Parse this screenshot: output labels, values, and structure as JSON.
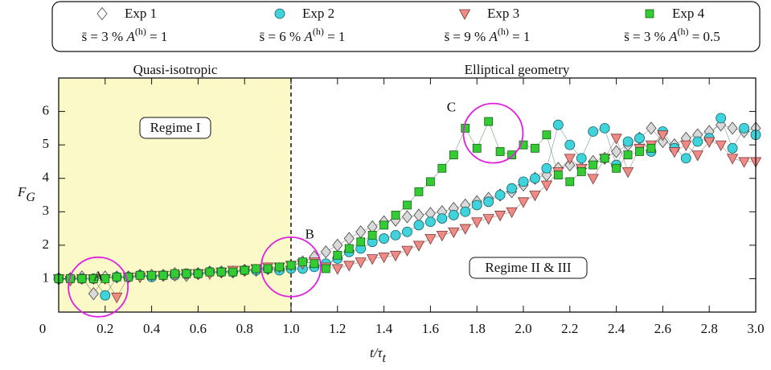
{
  "chart_data": {
    "type": "scatter",
    "x_label": {
      "main": "t/τ",
      "sub": "t"
    },
    "y_label": {
      "main": "F",
      "sub": "G"
    },
    "xlim": [
      0,
      3
    ],
    "ylim": [
      0,
      7
    ],
    "xticks": [
      0,
      0.2,
      0.4,
      0.6,
      0.8,
      {
        "value": 1,
        "label": "1.0"
      },
      1.2,
      1.4,
      1.6,
      1.8,
      {
        "value": 2,
        "label": "2.0"
      },
      2.2,
      2.4,
      2.6,
      2.8,
      {
        "value": 3,
        "label": "3.0"
      }
    ],
    "yticks": [
      1,
      2,
      3,
      4,
      5,
      6
    ],
    "shaded_region": [
      0,
      1
    ],
    "shade_color": "#fcf9c8",
    "annotations": {
      "left_region": "Quasi-isotropic",
      "right_region": "Elliptical geometry",
      "regime_1": "Regime I",
      "regime_2": "Regime II & III",
      "A": "A",
      "B": "B",
      "C": "C"
    },
    "x": [
      0,
      0.05,
      0.1,
      0.15,
      0.2,
      0.25,
      0.3,
      0.35,
      0.4,
      0.45,
      0.5,
      0.55,
      0.6,
      0.65,
      0.7,
      0.75,
      0.8,
      0.85,
      0.9,
      0.95,
      1,
      1.05,
      1.1,
      1.15,
      1.2,
      1.25,
      1.3,
      1.35,
      1.4,
      1.45,
      1.5,
      1.55,
      1.6,
      1.65,
      1.7,
      1.75,
      1.8,
      1.85,
      1.9,
      1.95,
      2,
      2.05,
      2.1,
      2.15,
      2.2,
      2.25,
      2.3,
      2.35,
      2.4,
      2.45,
      2.5,
      2.55,
      2.6,
      2.65,
      2.7,
      2.75,
      2.8,
      2.85,
      2.9,
      2.95,
      3
    ],
    "series": [
      {
        "name": "Exp 1",
        "params": [
          "s̄ = 3 % ",
          "A",
          "(h)",
          " = 1"
        ],
        "marker": "diamond",
        "color": "#d9d9d9",
        "stroke": "#444444",
        "legend_fill": "#ffffff",
        "values": [
          1,
          1,
          1.05,
          0.55,
          1.05,
          1.05,
          1.05,
          1.1,
          1.1,
          1.1,
          1.15,
          1.1,
          1.15,
          1.2,
          1.2,
          1.2,
          1.25,
          1.25,
          1.3,
          1.3,
          1.35,
          1.5,
          1.65,
          1.8,
          2.0,
          2.2,
          2.4,
          2.55,
          2.7,
          2.75,
          2.85,
          2.9,
          2.95,
          3.0,
          3.1,
          3.2,
          3.3,
          3.4,
          3.5,
          3.6,
          3.8,
          4.0,
          4.1,
          4.3,
          4.4,
          4.3,
          4.5,
          4.6,
          4.8,
          5.0,
          5.2,
          5.5,
          5.1,
          5.0,
          5.2,
          5.3,
          5.4,
          5.6,
          5.5,
          5.4,
          5.5
        ]
      },
      {
        "name": "Exp 2",
        "params": [
          "s̄ = 6 % ",
          "A",
          "(h)",
          " = 1"
        ],
        "marker": "circle",
        "color": "#3fd4dc",
        "stroke": "#1a5c60",
        "legend_fill": "#3fd4dc",
        "values": [
          1,
          1,
          1,
          1,
          0.5,
          1.05,
          1.05,
          1.1,
          1.05,
          1.1,
          1.1,
          1.15,
          1.15,
          1.2,
          1.2,
          1.2,
          1.25,
          1.25,
          1.3,
          1.25,
          1.3,
          1.3,
          1.35,
          1.45,
          1.6,
          1.8,
          1.9,
          2.1,
          2.2,
          2.3,
          2.4,
          2.6,
          2.7,
          2.8,
          2.9,
          3.0,
          3.2,
          3.3,
          3.5,
          3.7,
          3.9,
          4.0,
          4.3,
          5.6,
          5.0,
          4.6,
          5.4,
          5.5,
          4.4,
          5.1,
          5.2,
          4.8,
          5.4,
          4.9,
          4.6,
          5.1,
          5.2,
          5.8,
          4.9,
          5.5,
          5.3
        ]
      },
      {
        "name": "Exp 3",
        "params": [
          "s̄ = 9 % ",
          "A",
          "(h)",
          " = 1"
        ],
        "marker": "triangle",
        "color": "#f08a84",
        "stroke": "#7a3a3a",
        "legend_fill": "#f08a84",
        "values": [
          1,
          0.95,
          1,
          1,
          1,
          0.45,
          1.05,
          1.05,
          1.1,
          1.1,
          1.1,
          1.15,
          1.15,
          1.15,
          1.2,
          1.25,
          1.25,
          1.3,
          1.35,
          1.35,
          1.4,
          1.45,
          1.5,
          1.35,
          1.3,
          1.4,
          1.5,
          1.6,
          1.65,
          1.7,
          1.85,
          2.0,
          2.2,
          2.3,
          2.4,
          2.5,
          2.7,
          2.8,
          2.9,
          3.0,
          3.3,
          3.5,
          3.8,
          4.2,
          4.6,
          4.3,
          4.0,
          4.6,
          5.2,
          4.2,
          4.9,
          5.0,
          5.3,
          4.8,
          5.0,
          4.7,
          5.1,
          5.0,
          4.6,
          4.5,
          4.5
        ]
      },
      {
        "name": "Exp 4",
        "params": [
          "s̄ = 3 % ",
          "A",
          "(h)",
          " = 0.5"
        ],
        "marker": "square",
        "color": "#33cc33",
        "stroke": "#1a601a",
        "legend_fill": "#33cc33",
        "values": [
          1,
          1,
          1,
          1,
          1,
          1.05,
          1.05,
          1.1,
          1.1,
          1.1,
          1.15,
          1.15,
          1.15,
          1.2,
          1.2,
          1.2,
          1.25,
          1.3,
          1.3,
          1.35,
          1.4,
          1.5,
          1.45,
          1.3,
          1.7,
          1.9,
          2.1,
          2.3,
          2.6,
          2.9,
          3.2,
          3.6,
          3.9,
          4.3,
          4.7,
          5.5,
          4.9,
          5.7,
          4.8,
          4.7,
          5.0,
          4.9,
          5.3,
          4.1,
          3.9,
          4.2,
          4.4,
          4.6,
          4.3,
          4.7,
          4.8,
          4.9,
          null,
          null,
          null,
          null,
          null,
          null,
          null,
          null,
          null
        ]
      }
    ]
  }
}
